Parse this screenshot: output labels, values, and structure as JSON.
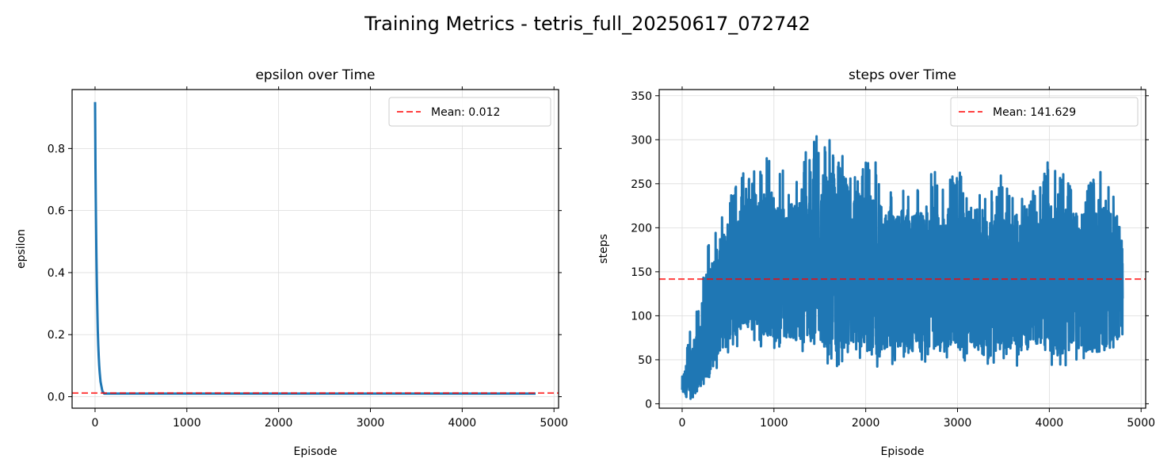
{
  "figure": {
    "title": "Training Metrics - tetris_full_20250617_072742"
  },
  "chart_data": [
    {
      "type": "line",
      "title": "epsilon over Time",
      "xlabel": "Episode",
      "ylabel": "epsilon",
      "xlim": [
        -250,
        5050
      ],
      "ylim": [
        -0.037,
        0.99
      ],
      "xticks": [
        0,
        1000,
        2000,
        3000,
        4000,
        5000
      ],
      "xtick_labels": [
        "0",
        "1000",
        "2000",
        "3000",
        "4000",
        "5000"
      ],
      "yticks": [
        0.0,
        0.2,
        0.4,
        0.6,
        0.8
      ],
      "ytick_labels": [
        "0.0",
        "0.2",
        "0.4",
        "0.6",
        "0.8"
      ],
      "grid": true,
      "legend_position": "top-right",
      "series": [
        {
          "color": "#1f77b4",
          "x": [
            0,
            5,
            10,
            15,
            20,
            25,
            30,
            35,
            40,
            45,
            50,
            60,
            80,
            100,
            4800
          ],
          "y": [
            0.95,
            0.741,
            0.578,
            0.451,
            0.352,
            0.274,
            0.214,
            0.167,
            0.13,
            0.101,
            0.079,
            0.048,
            0.018,
            0.01,
            0.01
          ]
        }
      ],
      "reference_line": {
        "value": 0.012,
        "label": "Mean: 0.012",
        "color": "#ff0000",
        "style": "dashed"
      }
    },
    {
      "type": "line",
      "title": "steps over Time",
      "xlabel": "Episode",
      "ylabel": "steps",
      "xlim": [
        -250,
        5050
      ],
      "ylim": [
        -5,
        357
      ],
      "xticks": [
        0,
        1000,
        2000,
        3000,
        4000,
        5000
      ],
      "xtick_labels": [
        "0",
        "1000",
        "2000",
        "3000",
        "4000",
        "5000"
      ],
      "yticks": [
        0,
        50,
        100,
        150,
        200,
        250,
        300,
        350
      ],
      "ytick_labels": [
        "0",
        "50",
        "100",
        "150",
        "200",
        "250",
        "300",
        "350"
      ],
      "grid": true,
      "legend_position": "top-right",
      "series": [
        {
          "color": "#1f77b4",
          "x": [
            0,
            100,
            200,
            300,
            400,
            500,
            600,
            700,
            800,
            900,
            1000,
            1100,
            1200,
            1300,
            1400,
            1500,
            1600,
            1700,
            1800,
            1900,
            2000,
            2100,
            2200,
            2300,
            2400,
            2500,
            2600,
            2700,
            2800,
            2900,
            3000,
            3100,
            3200,
            3300,
            3400,
            3500,
            3600,
            3700,
            3800,
            3900,
            4000,
            4100,
            4200,
            4300,
            4400,
            4500,
            4600,
            4700,
            4800
          ],
          "y_low": [
            12,
            15,
            22,
            30,
            40,
            55,
            65,
            70,
            68,
            60,
            58,
            55,
            55,
            55,
            55,
            50,
            45,
            42,
            45,
            50,
            45,
            40,
            42,
            45,
            50,
            48,
            45,
            48,
            45,
            50,
            48,
            45,
            48,
            42,
            45,
            48,
            45,
            40,
            45,
            48,
            45,
            42,
            40,
            48,
            45,
            45,
            48,
            50,
            60
          ],
          "y_high": [
            40,
            95,
            125,
            195,
            210,
            240,
            250,
            270,
            285,
            280,
            285,
            265,
            260,
            280,
            300,
            315,
            300,
            335,
            290,
            290,
            285,
            280,
            255,
            240,
            265,
            255,
            250,
            275,
            260,
            250,
            280,
            240,
            235,
            240,
            245,
            265,
            235,
            240,
            245,
            250,
            280,
            270,
            260,
            255,
            250,
            265,
            270,
            255,
            215
          ],
          "y_mid": [
            20,
            35,
            55,
            95,
            120,
            140,
            150,
            160,
            165,
            160,
            155,
            155,
            150,
            155,
            160,
            165,
            160,
            170,
            160,
            155,
            150,
            145,
            140,
            140,
            145,
            140,
            140,
            145,
            140,
            140,
            145,
            135,
            135,
            135,
            140,
            140,
            135,
            135,
            140,
            140,
            140,
            140,
            140,
            140,
            140,
            140,
            140,
            140,
            140
          ]
        }
      ],
      "reference_line": {
        "value": 141.629,
        "label": "Mean: 141.629",
        "color": "#ff0000",
        "style": "dashed"
      }
    }
  ]
}
